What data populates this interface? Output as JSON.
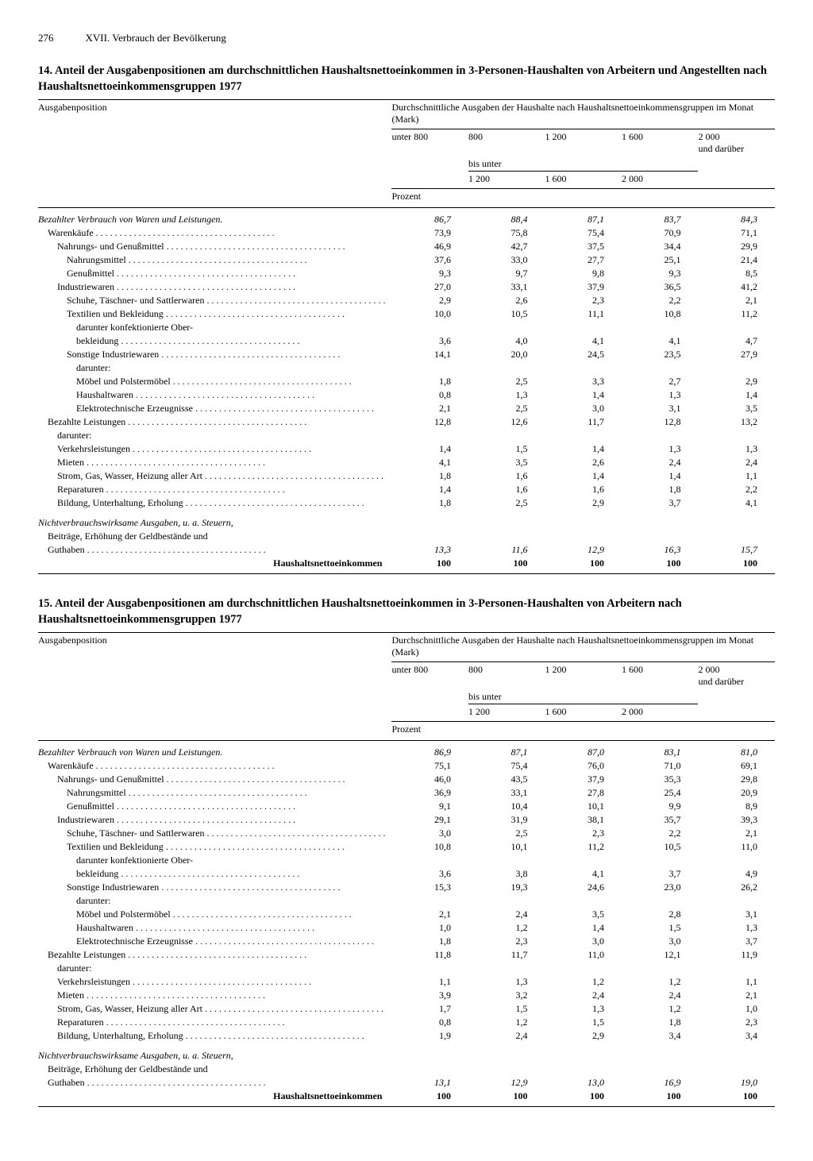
{
  "page": {
    "number": "276",
    "chapter": "XVII. Verbrauch der Bevölkerung"
  },
  "headers_common": {
    "col_label": "Ausgabenposition",
    "super": "Durchschnittliche Ausgaben der Haushalte nach Haushaltsnettoeinkommensgruppen im Monat (Mark)",
    "c1": "unter 800",
    "c2a": "800",
    "c3a": "1 200",
    "c4a": "1 600",
    "c5a": "2 000",
    "c5b": "und darüber",
    "bis_unter": "bis unter",
    "c2b": "1 200",
    "c3b": "1 600",
    "c4b": "2 000",
    "unit": "Prozent"
  },
  "table14": {
    "title": "14. Anteil der Ausgabenpositionen am durchschnittlichen Haushaltsnettoeinkommen in 3-Personen-Haushalten von Arbeitern und Angestellten nach Haushaltsnettoeinkommensgruppen 1977",
    "rows": [
      {
        "label": "Bezahlter Verbrauch von Waren und Leistungen.",
        "v": [
          "86,7",
          "88,4",
          "87,1",
          "83,7",
          "84,3"
        ],
        "italic": true
      },
      {
        "label": "Warenkäufe",
        "v": [
          "73,9",
          "75,8",
          "75,4",
          "70,9",
          "71,1"
        ],
        "indent": 1,
        "dots": true
      },
      {
        "label": "Nahrungs- und Genußmittel",
        "v": [
          "46,9",
          "42,7",
          "37,5",
          "34,4",
          "29,9"
        ],
        "indent": 2,
        "dots": true
      },
      {
        "label": "Nahrungsmittel",
        "v": [
          "37,6",
          "33,0",
          "27,7",
          "25,1",
          "21,4"
        ],
        "indent": 3,
        "dots": true
      },
      {
        "label": "Genußmittel",
        "v": [
          "9,3",
          "9,7",
          "9,8",
          "9,3",
          "8,5"
        ],
        "indent": 3,
        "dots": true
      },
      {
        "label": "Industriewaren",
        "v": [
          "27,0",
          "33,1",
          "37,9",
          "36,5",
          "41,2"
        ],
        "indent": 2,
        "dots": true
      },
      {
        "label": "Schuhe, Täschner- und Sattlerwaren",
        "v": [
          "2,9",
          "2,6",
          "2,3",
          "2,2",
          "2,1"
        ],
        "indent": 3,
        "dots": true
      },
      {
        "label": "Textilien und Bekleidung",
        "v": [
          "10,0",
          "10,5",
          "11,1",
          "10,8",
          "11,2"
        ],
        "indent": 3,
        "dots": true
      },
      {
        "label": "darunter konfektionierte Ober-",
        "v": [
          "",
          "",
          "",
          "",
          ""
        ],
        "indent": 4
      },
      {
        "label": "bekleidung",
        "v": [
          "3,6",
          "4,0",
          "4,1",
          "4,1",
          "4,7"
        ],
        "indent": 4,
        "dots": true
      },
      {
        "label": "Sonstige Industriewaren",
        "v": [
          "14,1",
          "20,0",
          "24,5",
          "23,5",
          "27,9"
        ],
        "indent": 3,
        "dots": true
      },
      {
        "label": "darunter:",
        "v": [
          "",
          "",
          "",
          "",
          ""
        ],
        "indent": 4
      },
      {
        "label": "Möbel und Polstermöbel",
        "v": [
          "1,8",
          "2,5",
          "3,3",
          "2,7",
          "2,9"
        ],
        "indent": 4,
        "dots": true
      },
      {
        "label": "Haushaltwaren",
        "v": [
          "0,8",
          "1,3",
          "1,4",
          "1,3",
          "1,4"
        ],
        "indent": 4,
        "dots": true
      },
      {
        "label": "Elektrotechnische Erzeugnisse",
        "v": [
          "2,1",
          "2,5",
          "3,0",
          "3,1",
          "3,5"
        ],
        "indent": 4,
        "dots": true
      },
      {
        "label": "Bezahlte Leistungen",
        "v": [
          "12,8",
          "12,6",
          "11,7",
          "12,8",
          "13,2"
        ],
        "indent": 1,
        "dots": true
      },
      {
        "label": "darunter:",
        "v": [
          "",
          "",
          "",
          "",
          ""
        ],
        "indent": 2
      },
      {
        "label": "Verkehrsleistungen",
        "v": [
          "1,4",
          "1,5",
          "1,4",
          "1,3",
          "1,3"
        ],
        "indent": 2,
        "dots": true
      },
      {
        "label": "Mieten",
        "v": [
          "4,1",
          "3,5",
          "2,6",
          "2,4",
          "2,4"
        ],
        "indent": 2,
        "dots": true
      },
      {
        "label": "Strom, Gas, Wasser, Heizung aller Art",
        "v": [
          "1,8",
          "1,6",
          "1,4",
          "1,4",
          "1,1"
        ],
        "indent": 2,
        "dots": true
      },
      {
        "label": "Reparaturen",
        "v": [
          "1,4",
          "1,6",
          "1,6",
          "1,8",
          "2,2"
        ],
        "indent": 2,
        "dots": true
      },
      {
        "label": "Bildung, Unterhaltung, Erholung",
        "v": [
          "1,8",
          "2,5",
          "2,9",
          "3,7",
          "4,1"
        ],
        "indent": 2,
        "dots": true
      }
    ],
    "mid_section": {
      "l1": "Nichtverbrauchswirksame Ausgaben, u. a. Steuern,",
      "l2": "Beiträge, Erhöhung der Geldbestände und",
      "l3": "Guthaben",
      "v": [
        "13,3",
        "11,6",
        "12,9",
        "16,3",
        "15,7"
      ]
    },
    "total": {
      "label": "Haushaltsnettoeinkommen",
      "v": [
        "100",
        "100",
        "100",
        "100",
        "100"
      ]
    }
  },
  "table15": {
    "title": "15. Anteil der Ausgabenpositionen am durchschnittlichen Haushaltsnettoeinkommen in 3-Personen-Haushalten von Arbeitern nach Haushaltsnettoeinkommensgruppen 1977",
    "rows": [
      {
        "label": "Bezahlter Verbrauch von Waren und Leistungen.",
        "v": [
          "86,9",
          "87,1",
          "87,0",
          "83,1",
          "81,0"
        ],
        "italic": true
      },
      {
        "label": "Warenkäufe",
        "v": [
          "75,1",
          "75,4",
          "76,0",
          "71,0",
          "69,1"
        ],
        "indent": 1,
        "dots": true
      },
      {
        "label": "Nahrungs- und Genußmittel",
        "v": [
          "46,0",
          "43,5",
          "37,9",
          "35,3",
          "29,8"
        ],
        "indent": 2,
        "dots": true
      },
      {
        "label": "Nahrungsmittel",
        "v": [
          "36,9",
          "33,1",
          "27,8",
          "25,4",
          "20,9"
        ],
        "indent": 3,
        "dots": true
      },
      {
        "label": "Genußmittel",
        "v": [
          "9,1",
          "10,4",
          "10,1",
          "9,9",
          "8,9"
        ],
        "indent": 3,
        "dots": true
      },
      {
        "label": "Industriewaren",
        "v": [
          "29,1",
          "31,9",
          "38,1",
          "35,7",
          "39,3"
        ],
        "indent": 2,
        "dots": true
      },
      {
        "label": "Schuhe, Täschner- und Sattlerwaren",
        "v": [
          "3,0",
          "2,5",
          "2,3",
          "2,2",
          "2,1"
        ],
        "indent": 3,
        "dots": true
      },
      {
        "label": "Textilien und Bekleidung",
        "v": [
          "10,8",
          "10,1",
          "11,2",
          "10,5",
          "11,0"
        ],
        "indent": 3,
        "dots": true
      },
      {
        "label": "darunter konfektionierte Ober-",
        "v": [
          "",
          "",
          "",
          "",
          ""
        ],
        "indent": 4
      },
      {
        "label": "bekleidung",
        "v": [
          "3,6",
          "3,8",
          "4,1",
          "3,7",
          "4,9"
        ],
        "indent": 4,
        "dots": true
      },
      {
        "label": "Sonstige Industriewaren",
        "v": [
          "15,3",
          "19,3",
          "24,6",
          "23,0",
          "26,2"
        ],
        "indent": 3,
        "dots": true
      },
      {
        "label": "darunter:",
        "v": [
          "",
          "",
          "",
          "",
          ""
        ],
        "indent": 4
      },
      {
        "label": "Möbel und Polstermöbel",
        "v": [
          "2,1",
          "2,4",
          "3,5",
          "2,8",
          "3,1"
        ],
        "indent": 4,
        "dots": true
      },
      {
        "label": "Haushaltwaren",
        "v": [
          "1,0",
          "1,2",
          "1,4",
          "1,5",
          "1,3"
        ],
        "indent": 4,
        "dots": true
      },
      {
        "label": "Elektrotechnische Erzeugnisse",
        "v": [
          "1,8",
          "2,3",
          "3,0",
          "3,0",
          "3,7"
        ],
        "indent": 4,
        "dots": true
      },
      {
        "label": "Bezahlte Leistungen",
        "v": [
          "11,8",
          "11,7",
          "11,0",
          "12,1",
          "11,9"
        ],
        "indent": 1,
        "dots": true
      },
      {
        "label": "darunter:",
        "v": [
          "",
          "",
          "",
          "",
          ""
        ],
        "indent": 2
      },
      {
        "label": "Verkehrsleistungen",
        "v": [
          "1,1",
          "1,3",
          "1,2",
          "1,2",
          "1,1"
        ],
        "indent": 2,
        "dots": true
      },
      {
        "label": "Mieten",
        "v": [
          "3,9",
          "3,2",
          "2,4",
          "2,4",
          "2,1"
        ],
        "indent": 2,
        "dots": true
      },
      {
        "label": "Strom, Gas, Wasser, Heizung aller Art",
        "v": [
          "1,7",
          "1,5",
          "1,3",
          "1,2",
          "1,0"
        ],
        "indent": 2,
        "dots": true
      },
      {
        "label": "Reparaturen",
        "v": [
          "0,8",
          "1,2",
          "1,5",
          "1,8",
          "2,3"
        ],
        "indent": 2,
        "dots": true
      },
      {
        "label": "Bildung, Unterhaltung, Erholung",
        "v": [
          "1,9",
          "2,4",
          "2,9",
          "3,4",
          "3,4"
        ],
        "indent": 2,
        "dots": true
      }
    ],
    "mid_section": {
      "l1": "Nichtverbrauchswirksame Ausgaben, u. a. Steuern,",
      "l2": "Beiträge, Erhöhung der Geldbestände und",
      "l3": "Guthaben",
      "v": [
        "13,1",
        "12,9",
        "13,0",
        "16,9",
        "19,0"
      ]
    },
    "total": {
      "label": "Haushaltsnettoeinkommen",
      "v": [
        "100",
        "100",
        "100",
        "100",
        "100"
      ]
    }
  }
}
